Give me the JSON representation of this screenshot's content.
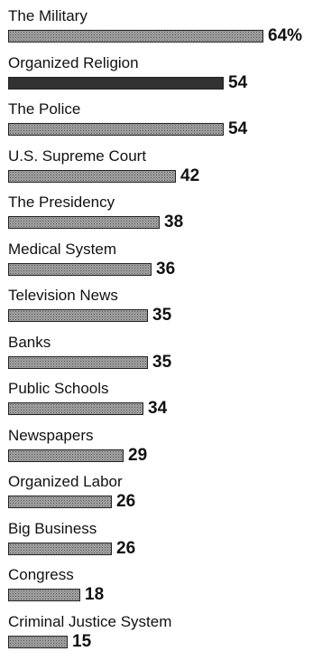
{
  "chart_data": {
    "type": "bar",
    "orientation": "horizontal",
    "title": "",
    "xlabel": "",
    "ylabel": "",
    "xlim": [
      0,
      64
    ],
    "grid": false,
    "legend": "none",
    "value_suffix_first": "%",
    "categories": [
      "The Military",
      "Organized Religion",
      "The Police",
      "U.S. Supreme Court",
      "The Presidency",
      "Medical System",
      "Television News",
      "Banks",
      "Public Schools",
      "Newspapers",
      "Organized Labor",
      "Big Business",
      "Congress",
      "Criminal Justice System"
    ],
    "values": [
      64,
      54,
      54,
      42,
      38,
      36,
      35,
      35,
      34,
      29,
      26,
      26,
      18,
      15
    ],
    "value_labels": [
      "64%",
      "54",
      "54",
      "42",
      "38",
      "36",
      "35",
      "35",
      "34",
      "29",
      "26",
      "26",
      "18",
      "15"
    ],
    "bar_styles": [
      "dotted",
      "solid",
      "dotted",
      "dotted",
      "dotted",
      "dotted",
      "dotted",
      "dotted",
      "dotted",
      "dotted",
      "dotted",
      "dotted",
      "dotted",
      "dotted"
    ],
    "colors": {
      "bar_fill": "#bdbdbd",
      "bar_dots": "#555555",
      "bar_solid": "#3c3c3c",
      "text": "#111111"
    }
  }
}
